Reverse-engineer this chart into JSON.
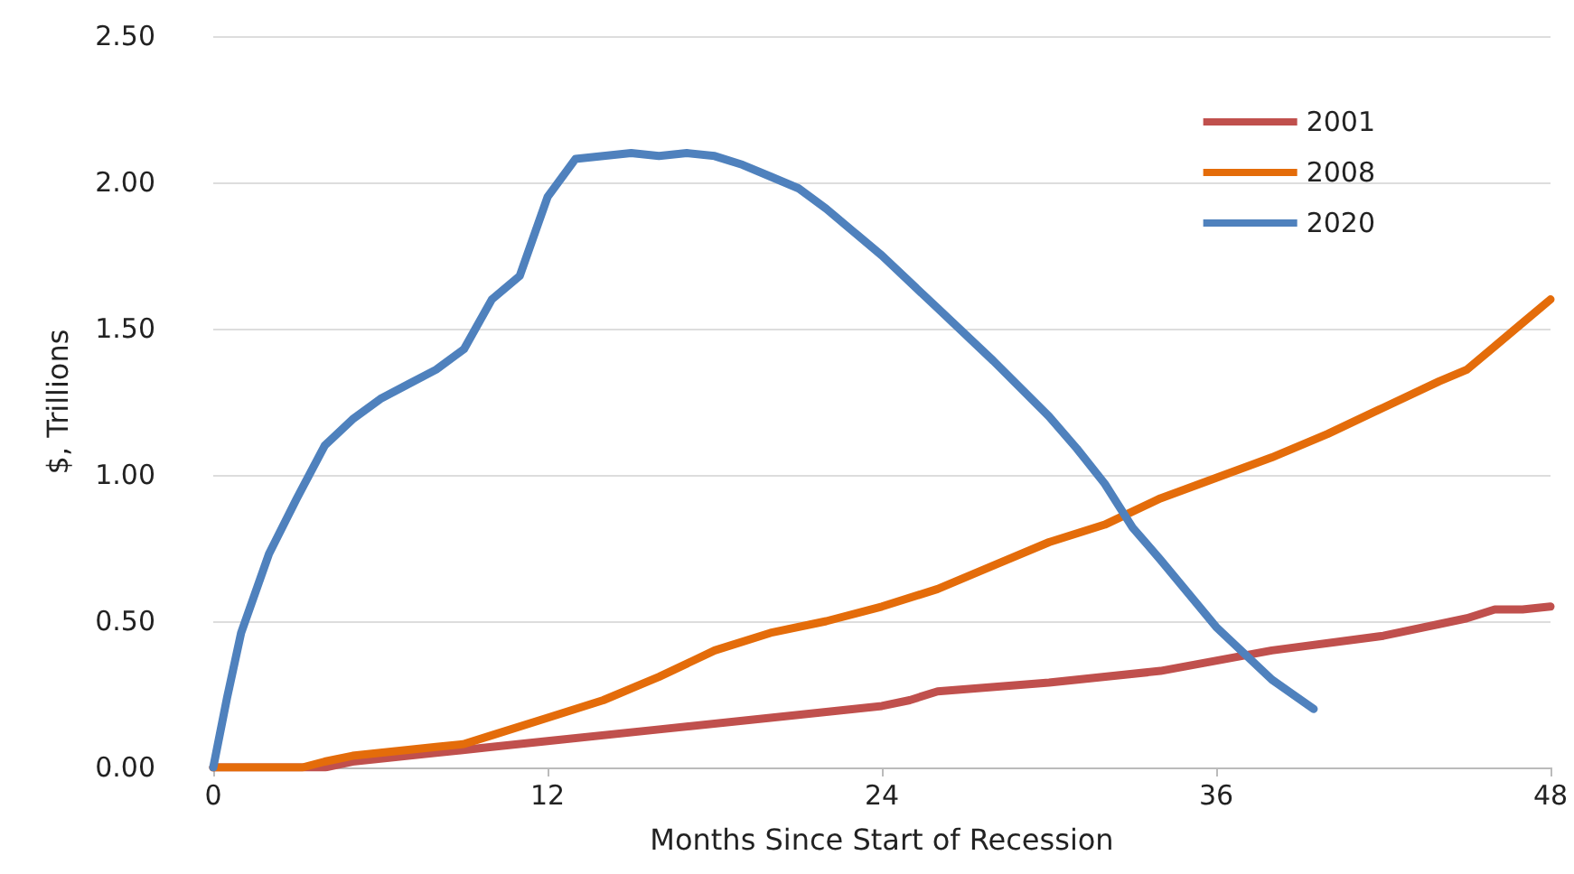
{
  "chart_data": {
    "type": "line",
    "xlabel": "Months Since Start of Recession",
    "ylabel": "$, Trillions",
    "xlim": [
      0,
      48
    ],
    "xticks": [
      0,
      12,
      24,
      36,
      48
    ],
    "ylim": [
      0,
      2.5
    ],
    "yticks": [
      {
        "value": 0,
        "label": "0.00"
      },
      {
        "value": 0.5,
        "label": "0.50"
      },
      {
        "value": 1,
        "label": "1.00"
      },
      {
        "value": 1.5,
        "label": "1.50"
      },
      {
        "value": 2,
        "label": "2.00"
      },
      {
        "value": 2.5,
        "label": "2.50"
      }
    ],
    "grid": "y",
    "legend": "top right",
    "marker": "none",
    "line_style": "solid",
    "series": [
      {
        "name": "2001",
        "color": "#c0504d",
        "x": [
          0,
          2,
          4,
          5,
          6,
          8,
          10,
          12,
          16,
          20,
          24,
          25,
          26,
          30,
          34,
          38,
          42,
          44,
          45,
          46,
          47,
          48
        ],
        "values": [
          0,
          0,
          0,
          0.02,
          0.03,
          0.05,
          0.07,
          0.09,
          0.13,
          0.17,
          0.21,
          0.23,
          0.26,
          0.29,
          0.33,
          0.4,
          0.45,
          0.49,
          0.51,
          0.54,
          0.54,
          0.55
        ]
      },
      {
        "name": "2008",
        "color": "#e46c0a",
        "x": [
          0,
          2,
          3.2,
          4,
          5,
          6,
          8,
          9,
          10,
          12,
          14,
          16,
          18,
          20,
          22,
          24,
          26,
          28,
          30,
          32,
          34,
          36,
          38,
          40,
          42,
          44,
          45,
          46,
          47,
          48
        ],
        "values": [
          0,
          0,
          0,
          0.02,
          0.04,
          0.05,
          0.07,
          0.08,
          0.11,
          0.17,
          0.23,
          0.31,
          0.4,
          0.46,
          0.5,
          0.55,
          0.61,
          0.69,
          0.77,
          0.83,
          0.92,
          0.99,
          1.06,
          1.14,
          1.23,
          1.32,
          1.36,
          1.44,
          1.52,
          1.6
        ]
      },
      {
        "name": "2020",
        "color": "#4f81bd",
        "x": [
          0,
          0.5,
          1,
          2,
          3,
          4,
          5,
          6,
          7,
          8,
          9,
          10,
          11,
          12,
          13,
          14,
          15,
          16,
          17,
          18,
          19,
          20,
          21,
          22,
          23,
          24,
          26,
          28,
          30,
          31,
          32,
          33,
          34,
          36,
          38,
          39.5
        ],
        "values": [
          0,
          0.24,
          0.46,
          0.73,
          0.92,
          1.1,
          1.19,
          1.26,
          1.31,
          1.36,
          1.43,
          1.6,
          1.68,
          1.95,
          2.08,
          2.09,
          2.1,
          2.09,
          2.1,
          2.09,
          2.06,
          2.02,
          1.98,
          1.91,
          1.83,
          1.75,
          1.57,
          1.39,
          1.2,
          1.09,
          0.97,
          0.82,
          0.71,
          0.48,
          0.3,
          0.2
        ]
      }
    ]
  }
}
